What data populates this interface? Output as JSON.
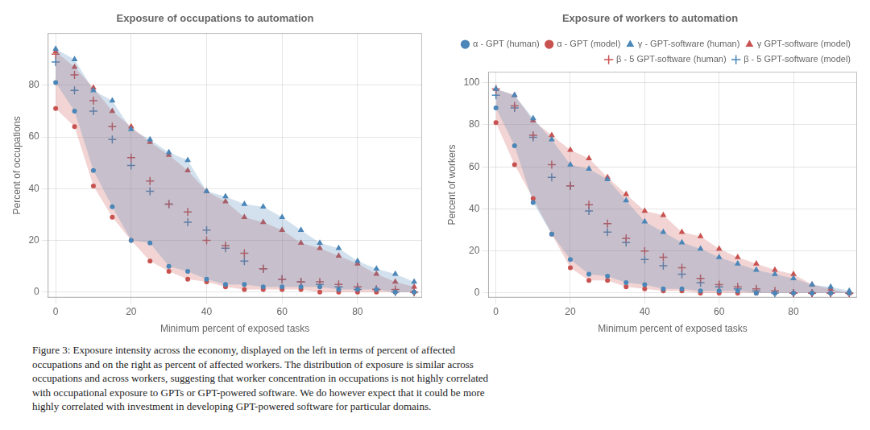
{
  "chart_data": [
    {
      "type": "scatter",
      "title": "Exposure of occupations to automation",
      "xlabel": "Minimum percent of exposed tasks",
      "ylabel": "Percent of occupations",
      "x": [
        0,
        5,
        10,
        15,
        20,
        25,
        30,
        35,
        40,
        45,
        50,
        55,
        60,
        65,
        70,
        75,
        80,
        85,
        90,
        95
      ],
      "xlim": [
        -2,
        97
      ],
      "xticks": [
        0,
        20,
        40,
        60,
        80
      ],
      "ylim": [
        -2,
        100
      ],
      "yticks": [
        0,
        20,
        40,
        60,
        80
      ],
      "grid": true,
      "series": [
        {
          "name": "α - GPT (human)",
          "color": "#4A86B8",
          "marker": "circle",
          "values": [
            81,
            70,
            47,
            33,
            20,
            19,
            10,
            8,
            5,
            3,
            3,
            2,
            2,
            2,
            2,
            1,
            1,
            1,
            0,
            0
          ]
        },
        {
          "name": "α - GPT (model)",
          "color": "#C85250",
          "marker": "circle",
          "values": [
            71,
            64,
            41,
            29,
            20,
            12,
            8,
            5,
            4,
            2,
            1,
            1,
            1,
            1,
            0,
            0,
            0,
            0,
            0,
            0
          ]
        },
        {
          "name": "β - 5 GPT-software (human)",
          "color": "#C85250",
          "marker": "plus",
          "values": [
            92,
            84,
            74,
            64,
            52,
            43,
            34,
            31,
            20,
            18,
            15,
            9,
            5,
            4,
            4,
            3,
            2,
            1,
            1,
            0
          ]
        },
        {
          "name": "β - 5 GPT-software (model)",
          "color": "#4A86B8",
          "marker": "plus",
          "values": [
            89,
            78,
            70,
            59,
            49,
            39,
            34,
            27,
            24,
            17,
            12,
            9,
            5,
            4,
            3,
            2,
            1,
            1,
            0,
            0
          ]
        },
        {
          "name": "γ - GPT-software (human)",
          "color": "#4A86B8",
          "marker": "triangle",
          "values": [
            94,
            90,
            78,
            74,
            63,
            59,
            54,
            51,
            39,
            37,
            34,
            33,
            29,
            24,
            19,
            17,
            12,
            9,
            7,
            4
          ]
        },
        {
          "name": "γ GPT-software (model)",
          "color": "#C85250",
          "marker": "triangle",
          "values": [
            93,
            87,
            79,
            70,
            64,
            58,
            53,
            47,
            39,
            35,
            29,
            27,
            24,
            19,
            17,
            14,
            11,
            7,
            4,
            2
          ]
        }
      ]
    },
    {
      "type": "scatter",
      "title": "Exposure of workers to automation",
      "xlabel": "Minimum percent of exposed tasks",
      "ylabel": "Percent of workers",
      "x": [
        0,
        5,
        10,
        15,
        20,
        25,
        30,
        35,
        40,
        45,
        50,
        55,
        60,
        65,
        70,
        75,
        80,
        85,
        90,
        95
      ],
      "xlim": [
        -2,
        97
      ],
      "xticks": [
        0,
        20,
        40,
        60,
        80
      ],
      "ylim": [
        -2,
        105
      ],
      "yticks": [
        0,
        20,
        40,
        60,
        80,
        100
      ],
      "grid": true,
      "legend": "upper right",
      "series": [
        {
          "name": "α - GPT (human)",
          "color": "#4A86B8",
          "marker": "circle",
          "values": [
            88,
            70,
            43,
            28,
            16,
            9,
            8,
            5,
            4,
            2,
            2,
            1,
            1,
            1,
            0,
            0,
            0,
            0,
            0,
            0
          ]
        },
        {
          "name": "α - GPT (model)",
          "color": "#C85250",
          "marker": "circle",
          "values": [
            81,
            61,
            45,
            28,
            12,
            6,
            6,
            3,
            2,
            1,
            1,
            0,
            0,
            0,
            0,
            0,
            0,
            0,
            0,
            0
          ]
        },
        {
          "name": "β - 5 GPT-software (human)",
          "color": "#C85250",
          "marker": "plus",
          "values": [
            97,
            89,
            75,
            61,
            51,
            42,
            33,
            26,
            20,
            17,
            12,
            7,
            4,
            3,
            2,
            1,
            0,
            0,
            0,
            0
          ]
        },
        {
          "name": "β - 5 GPT-software (model)",
          "color": "#4A86B8",
          "marker": "plus",
          "values": [
            94,
            88,
            74,
            55,
            51,
            39,
            29,
            24,
            16,
            13,
            9,
            5,
            3,
            2,
            1,
            0,
            0,
            0,
            0,
            0
          ]
        },
        {
          "name": "γ - GPT-software (human)",
          "color": "#4A86B8",
          "marker": "triangle",
          "values": [
            97,
            94,
            83,
            73,
            61,
            59,
            54,
            44,
            34,
            29,
            24,
            21,
            17,
            14,
            11,
            9,
            7,
            4,
            3,
            1
          ]
        },
        {
          "name": "γ GPT-software (model)",
          "color": "#C85250",
          "marker": "triangle",
          "values": [
            97,
            94,
            82,
            75,
            68,
            64,
            55,
            47,
            39,
            37,
            29,
            27,
            21,
            17,
            14,
            11,
            9,
            4,
            2,
            0
          ]
        }
      ]
    }
  ],
  "caption": [
    "Figure 3:  Exposure intensity across the economy, displayed on the left in terms of percent of affected",
    "occupations and on the right as percent of affected workers. The distribution of exposure is similar across",
    "occupations and across workers, suggesting that worker concentration in occupations is not highly correlated",
    "with occupational exposure to GPTs or GPT-powered software. We do however expect that it could be more",
    "highly correlated with investment in developing GPT-powered software for particular domains."
  ]
}
